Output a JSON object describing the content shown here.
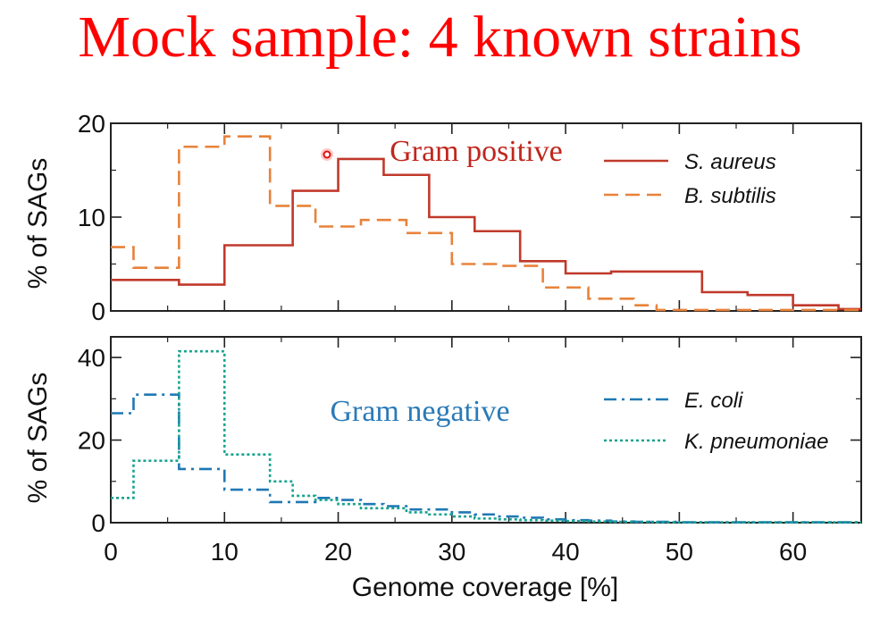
{
  "slide": {
    "title": "Mock sample: 4 known strains"
  },
  "xlabel": "Genome coverage [%]",
  "colors": {
    "title": "#ff0000",
    "s_aureus": "#c0392b",
    "b_subtilis": "#e8823a",
    "e_coli": "#1f78b4",
    "k_pneumoniae": "#17a38f",
    "annot_positive": "#c0261c",
    "annot_negative": "#2a7ab8"
  },
  "chart_data": [
    {
      "type": "line",
      "step": true,
      "title": "",
      "annotation": "Gram positive",
      "xlabel": "",
      "ylabel": "% of SAGs",
      "xlim": [
        0,
        66
      ],
      "ylim": [
        0,
        20
      ],
      "xticks": [
        "0",
        "10",
        "20",
        "30",
        "40",
        "50",
        "60"
      ],
      "yticks": [
        "0",
        "10",
        "20"
      ],
      "legend_position": "top-right",
      "bin_edges": [
        0,
        2,
        4,
        6,
        8,
        10,
        12,
        14,
        16,
        18,
        20,
        22,
        24,
        26,
        28,
        30,
        32,
        34,
        36,
        38,
        40,
        42,
        44,
        46,
        48,
        50,
        52,
        54,
        56,
        58,
        60,
        62,
        64,
        66
      ],
      "series": [
        {
          "name": "S. aureus",
          "style": "solid",
          "values": [
            3.3,
            3.3,
            3.3,
            2.8,
            2.8,
            7.0,
            7.0,
            7.0,
            12.8,
            12.8,
            16.2,
            16.2,
            14.5,
            14.5,
            10.0,
            10.0,
            8.5,
            8.5,
            5.3,
            5.3,
            4.0,
            4.0,
            4.2,
            4.2,
            4.2,
            4.2,
            2.0,
            2.0,
            1.7,
            1.7,
            0.6,
            0.6,
            0.2
          ]
        },
        {
          "name": "B. subtilis",
          "style": "dashed",
          "values": [
            6.8,
            4.6,
            4.6,
            17.5,
            17.5,
            18.6,
            18.6,
            11.2,
            11.2,
            9.0,
            9.0,
            9.7,
            9.7,
            8.3,
            8.3,
            5.0,
            5.0,
            4.8,
            4.8,
            2.5,
            2.5,
            1.3,
            1.3,
            0.6,
            0.1,
            0.1,
            0.1,
            0.1,
            0.1,
            0.1,
            0.1,
            0.1,
            0.1
          ]
        }
      ]
    },
    {
      "type": "line",
      "step": true,
      "title": "",
      "annotation": "Gram negative",
      "xlabel": "Genome coverage [%]",
      "ylabel": "% of SAGs",
      "xlim": [
        0,
        66
      ],
      "ylim": [
        0,
        45
      ],
      "xticks": [
        "0",
        "10",
        "20",
        "30",
        "40",
        "50",
        "60"
      ],
      "yticks": [
        "0",
        "20",
        "40"
      ],
      "legend_position": "top-right",
      "bin_edges": [
        0,
        2,
        4,
        6,
        8,
        10,
        12,
        14,
        16,
        18,
        20,
        22,
        24,
        26,
        28,
        30,
        32,
        34,
        36,
        38,
        40,
        42,
        44,
        46,
        48,
        50,
        52,
        54,
        56,
        58,
        60,
        62,
        64,
        66
      ],
      "series": [
        {
          "name": "E. coli",
          "style": "dashdot",
          "values": [
            26.5,
            31.0,
            31.0,
            13.0,
            13.0,
            8.0,
            8.0,
            5.0,
            5.0,
            6.0,
            5.5,
            4.5,
            4.0,
            3.2,
            3.2,
            2.5,
            2.0,
            1.5,
            1.2,
            0.8,
            0.6,
            0.5,
            0.3,
            0.2,
            0.2,
            0.1,
            0.1,
            0.1,
            0.1,
            0.1,
            0.1,
            0.1,
            0.1
          ]
        },
        {
          "name": "K. pneumoniae",
          "style": "dotted",
          "values": [
            6.0,
            15.0,
            15.0,
            41.5,
            41.5,
            16.5,
            16.5,
            10.0,
            6.5,
            5.5,
            4.5,
            3.5,
            3.5,
            2.5,
            2.0,
            1.5,
            1.0,
            0.8,
            0.6,
            0.5,
            0.4,
            0.3,
            0.2,
            0.2,
            0.1,
            0.1,
            0.1,
            0.1,
            0.1,
            0.1,
            0.1,
            0.1,
            0.1
          ]
        }
      ]
    }
  ]
}
